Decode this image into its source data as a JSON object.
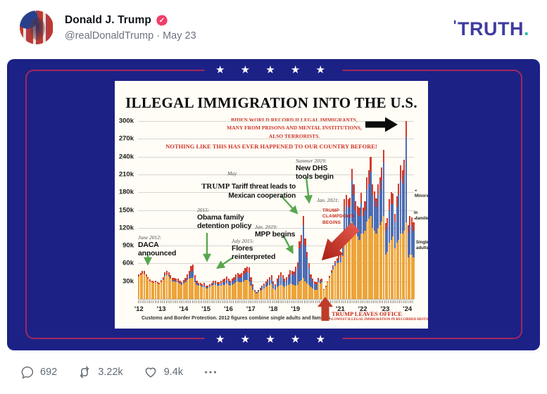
{
  "post": {
    "author": "Donald J. Trump",
    "verified": "verified",
    "handle": "@realDonaldTrump",
    "separator": " · ",
    "date": "May 23",
    "logo": {
      "mark": "'",
      "text": "TRUTH",
      "dot": ".",
      "color": "#403d9e",
      "dot_color": "#27c3a4"
    },
    "engagement": {
      "comments": "692",
      "retruths": "3.22k",
      "likes": "9.4k",
      "more": "•••"
    }
  },
  "card": {
    "bg_color": "#1c2186",
    "border_color": "#a22859",
    "stars_text": "★ ★ ★ ★ ★"
  },
  "chart_data": {
    "type": "bar",
    "stacked": true,
    "title": "ILLEGAL IMMIGRATION INTO THE U.S.",
    "subtitle_lines": [
      "BIDEN WORLD RECORD ILLEGAL IMMIGRANTS,",
      "MANY FROM PRISONS AND MENTAL INSTITUTIONS,",
      "ALSO TERRORISTS."
    ],
    "warning": "NOTHING LIKE THIS HAS EVER HAPPENED TO OUR COUNTRY BEFORE!",
    "source_note": "Customs and Border Protection. 2012 figures combine single adults and families.",
    "unit": "thousands of monthly border encounters",
    "x_range": "Jan 2012 – Apr 2024, monthly",
    "ylim": [
      0,
      300
    ],
    "ytick_labels": [
      "30k",
      "60k",
      "90k",
      "120k",
      "150k",
      "180k",
      "210k",
      "240k",
      "270k",
      "300k"
    ],
    "xtick_labels": [
      "'12",
      "'13",
      "'14",
      "'15",
      "'16",
      "'17",
      "'18",
      "'19",
      "",
      "'21",
      "'22",
      "'23",
      "'24"
    ],
    "legend": [
      {
        "label": "Minors"
      },
      {
        "line1": "In",
        "line2": "families"
      },
      {
        "line1": "Single",
        "line2": "adults"
      }
    ],
    "series": [
      {
        "name": "Single adults",
        "color": "#eda43a",
        "values": [
          38,
          40,
          43,
          42,
          38,
          34,
          30,
          28,
          27,
          28,
          26,
          25,
          28,
          32,
          38,
          40,
          38,
          34,
          30,
          30,
          28,
          28,
          26,
          24,
          26,
          28,
          32,
          34,
          36,
          36,
          28,
          24,
          22,
          22,
          20,
          20,
          18,
          18,
          20,
          22,
          24,
          24,
          22,
          22,
          22,
          24,
          24,
          26,
          24,
          22,
          24,
          26,
          28,
          30,
          28,
          28,
          30,
          32,
          32,
          30,
          22,
          16,
          12,
          10,
          12,
          14,
          16,
          18,
          20,
          22,
          24,
          26,
          18,
          16,
          20,
          22,
          24,
          22,
          20,
          22,
          24,
          26,
          25,
          24,
          22,
          24,
          30,
          32,
          36,
          30,
          26,
          24,
          20,
          18,
          16,
          16,
          28,
          26,
          28,
          15,
          20,
          28,
          35,
          44,
          50,
          56,
          60,
          62,
          62,
          72,
          100,
          110,
          112,
          118,
          130,
          125,
          110,
          105,
          100,
          110,
          110,
          115,
          130,
          135,
          140,
          120,
          115,
          110,
          120,
          125,
          130,
          140,
          75,
          80,
          95,
          100,
          105,
          85,
          95,
          100,
          110,
          110,
          115,
          130,
          70,
          75,
          75,
          70
        ]
      },
      {
        "name": "In families",
        "color": "#4c6cb4",
        "values": [
          0,
          0,
          0,
          0,
          0,
          0,
          0,
          0,
          0,
          0,
          0,
          0,
          1,
          1,
          2,
          2,
          2,
          2,
          2,
          2,
          2,
          2,
          2,
          2,
          2,
          3,
          4,
          6,
          10,
          12,
          6,
          3,
          2,
          2,
          2,
          3,
          2,
          2,
          2,
          2,
          3,
          3,
          3,
          3,
          4,
          4,
          5,
          6,
          6,
          5,
          6,
          6,
          7,
          8,
          8,
          9,
          10,
          12,
          14,
          14,
          8,
          5,
          2,
          1,
          2,
          3,
          4,
          5,
          6,
          7,
          8,
          9,
          8,
          6,
          9,
          12,
          14,
          12,
          9,
          10,
          12,
          16,
          16,
          16,
          24,
          28,
          55,
          62,
          88,
          60,
          44,
          28,
          16,
          12,
          10,
          9,
          5,
          4,
          3,
          1,
          1,
          1,
          2,
          2,
          3,
          4,
          4,
          5,
          8,
          16,
          50,
          48,
          42,
          38,
          70,
          50,
          40,
          38,
          40,
          52,
          30,
          35,
          55,
          60,
          75,
          55,
          50,
          45,
          55,
          60,
          70,
          90,
          40,
          42,
          55,
          60,
          55,
          45,
          60,
          75,
          90,
          85,
          95,
          145,
          42,
          50,
          48,
          45
        ]
      },
      {
        "name": "Minors",
        "color": "#d23b2a",
        "values": [
          3,
          4,
          5,
          5,
          4,
          3,
          3,
          3,
          3,
          3,
          3,
          2,
          3,
          4,
          5,
          5,
          5,
          4,
          4,
          4,
          4,
          4,
          3,
          3,
          4,
          5,
          6,
          8,
          10,
          10,
          6,
          4,
          3,
          3,
          3,
          4,
          3,
          3,
          3,
          3,
          4,
          4,
          4,
          4,
          5,
          5,
          6,
          6,
          5,
          4,
          5,
          5,
          6,
          6,
          6,
          7,
          8,
          8,
          9,
          9,
          7,
          4,
          2,
          1,
          2,
          2,
          3,
          3,
          4,
          4,
          5,
          5,
          4,
          3,
          5,
          6,
          7,
          6,
          5,
          5,
          6,
          7,
          6,
          6,
          9,
          10,
          12,
          14,
          16,
          12,
          9,
          8,
          6,
          5,
          4,
          4,
          3,
          3,
          3,
          1,
          1,
          1,
          2,
          3,
          4,
          4,
          5,
          6,
          6,
          9,
          19,
          17,
          14,
          15,
          19,
          18,
          15,
          13,
          14,
          17,
          14,
          15,
          20,
          22,
          25,
          18,
          16,
          15,
          18,
          20,
          22,
          22,
          13,
          14,
          18,
          20,
          18,
          14,
          18,
          20,
          25,
          22,
          25,
          27,
          12,
          15,
          14,
          14
        ]
      }
    ],
    "annotations": [
      {
        "date": "June 2012:",
        "line1": "DACA",
        "line2": "announced"
      },
      {
        "date": "2015:",
        "line1": "Obama family",
        "line2": "detention policy"
      },
      {
        "date": "July 2015:",
        "line1": "Flores",
        "line2": "reinterpreted"
      },
      {
        "date": "May",
        "trump": "TRUMP",
        "line1": " Tariff threat leads to",
        "line2": "Mexican cooperation"
      },
      {
        "date": "Jan. 2019:",
        "line1": "MPP begins"
      },
      {
        "date": "Summer 2019:",
        "line1": "New DHS",
        "line2": "tools begin"
      },
      {
        "date": "Jan. 2021:",
        "line1": "TRUMP",
        "line2": "CLAMPDOWN",
        "line3": "BEGINS"
      },
      {
        "line1": "TRUMP LEAVES OFFICE",
        "line2": "LOWEST ILLEGAL IMMIGRATION IN RECORDED HISTORY!"
      }
    ]
  }
}
